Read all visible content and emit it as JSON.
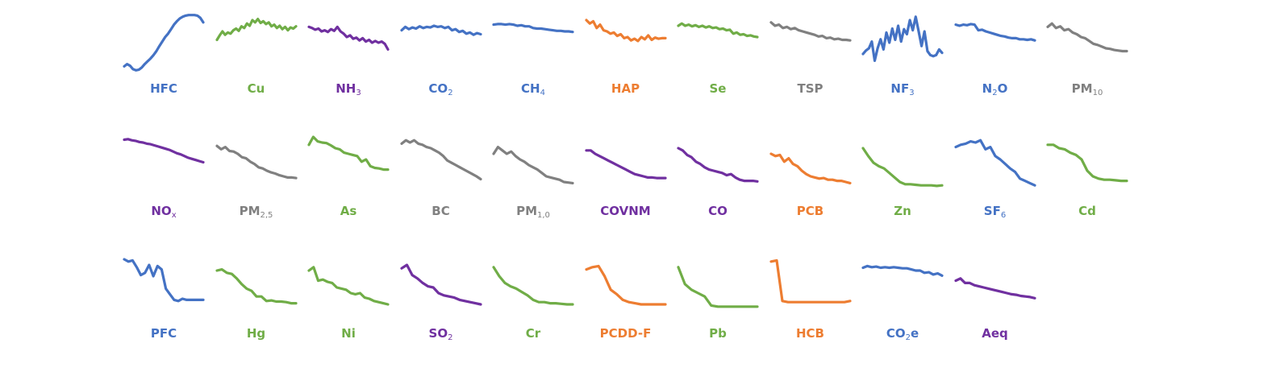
{
  "palette": {
    "blue": "#4472c4",
    "green": "#70ad47",
    "purple": "#7030a0",
    "orange": "#ed7d31",
    "gray": "#808080"
  },
  "chart_data": {
    "type": "line",
    "layout": "small-multiples grid, 3 rows x 11 columns, sparklines without axes",
    "ylim": [
      0,
      100
    ],
    "series": [
      {
        "name": "HFC",
        "label": "HFC",
        "sub": "",
        "color": "blue",
        "row": 0,
        "col": 0,
        "values": [
          8,
          12,
          9,
          3,
          1,
          2,
          6,
          12,
          17,
          22,
          28,
          35,
          44,
          52,
          60,
          66,
          74,
          82,
          88,
          93,
          96,
          98,
          99,
          99,
          99,
          98,
          94,
          86
        ]
      },
      {
        "name": "Cu",
        "label": "Cu",
        "sub": "",
        "color": "green",
        "row": 0,
        "col": 1,
        "values": [
          55,
          63,
          70,
          64,
          68,
          66,
          72,
          75,
          71,
          79,
          76,
          84,
          80,
          90,
          86,
          92,
          85,
          88,
          83,
          86,
          79,
          82,
          76,
          80,
          74,
          78,
          72,
          77,
          75,
          79
        ]
      },
      {
        "name": "NH3",
        "label": "NH",
        "sub": "3",
        "color": "purple",
        "row": 0,
        "col": 2,
        "values": [
          78,
          76,
          73,
          75,
          70,
          72,
          69,
          74,
          71,
          78,
          70,
          66,
          60,
          63,
          57,
          59,
          54,
          58,
          52,
          55,
          50,
          53,
          50,
          52,
          48,
          38
        ]
      },
      {
        "name": "CO2",
        "label": "CO",
        "sub": "2",
        "color": "blue",
        "row": 0,
        "col": 3,
        "values": [
          72,
          78,
          74,
          77,
          75,
          79,
          76,
          78,
          77,
          80,
          78,
          79,
          76,
          78,
          72,
          74,
          69,
          71,
          66,
          68,
          64,
          67,
          65
        ]
      },
      {
        "name": "CH4",
        "label": "CH",
        "sub": "4",
        "color": "blue",
        "row": 0,
        "col": 4,
        "values": [
          82,
          83,
          83,
          82,
          83,
          82,
          80,
          81,
          79,
          79,
          76,
          75,
          75,
          74,
          73,
          72,
          71,
          71,
          70,
          70,
          69
        ]
      },
      {
        "name": "HAP",
        "label": "HAP",
        "sub": "",
        "color": "orange",
        "row": 0,
        "col": 5,
        "values": [
          90,
          84,
          88,
          76,
          82,
          72,
          70,
          66,
          68,
          62,
          65,
          58,
          60,
          54,
          57,
          53,
          60,
          56,
          63,
          55,
          59,
          57,
          58,
          58
        ]
      },
      {
        "name": "Se",
        "label": "Se",
        "sub": "",
        "color": "green",
        "row": 0,
        "col": 6,
        "values": [
          80,
          84,
          80,
          82,
          79,
          81,
          78,
          80,
          77,
          79,
          76,
          77,
          74,
          75,
          72,
          73,
          66,
          68,
          64,
          65,
          62,
          63,
          61,
          60
        ]
      },
      {
        "name": "TSP",
        "label": "TSP",
        "sub": "",
        "color": "gray",
        "row": 0,
        "col": 7,
        "values": [
          86,
          80,
          82,
          76,
          78,
          74,
          76,
          72,
          70,
          68,
          66,
          64,
          61,
          62,
          58,
          59,
          56,
          57,
          55,
          55,
          54
        ]
      },
      {
        "name": "NF3",
        "label": "NF",
        "sub": "3",
        "color": "blue",
        "row": 0,
        "col": 8,
        "values": [
          30,
          36,
          40,
          52,
          18,
          40,
          56,
          38,
          68,
          50,
          75,
          55,
          80,
          52,
          74,
          65,
          90,
          72,
          96,
          70,
          44,
          70,
          35,
          28,
          26,
          28,
          38,
          32
        ]
      },
      {
        "name": "N2O",
        "label": "N",
        "sub": "2",
        "label2": "O",
        "color": "blue",
        "row": 0,
        "col": 9,
        "values": [
          82,
          80,
          82,
          81,
          83,
          82,
          72,
          73,
          70,
          68,
          66,
          64,
          62,
          61,
          59,
          58,
          58,
          56,
          56,
          55,
          56,
          54
        ]
      },
      {
        "name": "PM10",
        "label": "PM",
        "sub": "10",
        "color": "gray",
        "row": 0,
        "col": 10,
        "values": [
          78,
          84,
          76,
          79,
          72,
          74,
          68,
          65,
          60,
          58,
          53,
          48,
          46,
          43,
          40,
          39,
          37,
          36,
          35,
          35
        ]
      },
      {
        "name": "NOX",
        "label": "NO",
        "sub": "x",
        "color": "purple",
        "row": 1,
        "col": 0,
        "values": [
          95,
          96,
          94,
          93,
          91,
          90,
          88,
          87,
          85,
          83,
          81,
          79,
          77,
          74,
          71,
          69,
          66,
          63,
          61,
          59,
          57,
          55
        ]
      },
      {
        "name": "PM2,5",
        "label": "PM",
        "sub": "2,5",
        "color": "gray",
        "row": 1,
        "col": 1,
        "values": [
          84,
          78,
          82,
          75,
          74,
          70,
          64,
          62,
          56,
          52,
          46,
          44,
          40,
          37,
          35,
          32,
          30,
          28,
          28,
          27
        ]
      },
      {
        "name": "As",
        "label": "As",
        "sub": "",
        "color": "green",
        "row": 1,
        "col": 2,
        "values": [
          86,
          100,
          92,
          90,
          89,
          85,
          80,
          78,
          72,
          70,
          68,
          66,
          56,
          60,
          48,
          45,
          44,
          42,
          42
        ]
      },
      {
        "name": "BC",
        "label": "BC",
        "sub": "",
        "color": "gray",
        "row": 1,
        "col": 3,
        "values": [
          88,
          94,
          90,
          94,
          88,
          86,
          82,
          80,
          76,
          72,
          66,
          58,
          54,
          50,
          46,
          42,
          38,
          34,
          30,
          25
        ]
      },
      {
        "name": "PM1,0",
        "label": "PM",
        "sub": "1,0",
        "color": "gray",
        "row": 1,
        "col": 4,
        "values": [
          70,
          82,
          76,
          70,
          74,
          66,
          60,
          56,
          50,
          46,
          42,
          36,
          30,
          28,
          26,
          24,
          20,
          19,
          18
        ]
      },
      {
        "name": "COVNM",
        "label": "COVNM",
        "sub": "",
        "color": "purple",
        "row": 1,
        "col": 5,
        "values": [
          76,
          76,
          70,
          66,
          62,
          58,
          54,
          50,
          46,
          42,
          38,
          34,
          32,
          30,
          28,
          28,
          27,
          27,
          27
        ]
      },
      {
        "name": "CO",
        "label": "CO",
        "sub": "",
        "color": "purple",
        "row": 1,
        "col": 6,
        "values": [
          80,
          76,
          68,
          64,
          56,
          52,
          46,
          42,
          40,
          38,
          36,
          32,
          34,
          28,
          24,
          22,
          22,
          22,
          21
        ]
      },
      {
        "name": "PCB",
        "label": "PCB",
        "sub": "",
        "color": "orange",
        "row": 1,
        "col": 7,
        "values": [
          70,
          66,
          68,
          56,
          62,
          52,
          48,
          40,
          34,
          30,
          28,
          26,
          27,
          24,
          24,
          22,
          22,
          20,
          18
        ]
      },
      {
        "name": "Zn",
        "label": "Zn",
        "sub": "",
        "color": "green",
        "row": 1,
        "col": 8,
        "values": [
          80,
          66,
          54,
          48,
          44,
          36,
          28,
          20,
          16,
          16,
          15,
          14,
          14,
          14,
          13,
          14
        ]
      },
      {
        "name": "SF6",
        "label": "SF",
        "sub": "6",
        "color": "blue",
        "row": 1,
        "col": 9,
        "values": [
          82,
          86,
          88,
          92,
          90,
          94,
          78,
          82,
          66,
          60,
          52,
          44,
          38,
          26,
          22,
          18,
          14
        ]
      },
      {
        "name": "Cd",
        "label": "Cd",
        "sub": "",
        "color": "green",
        "row": 1,
        "col": 10,
        "values": [
          86,
          86,
          80,
          78,
          72,
          68,
          60,
          40,
          30,
          26,
          24,
          24,
          23,
          22,
          22
        ]
      },
      {
        "name": "PFC",
        "label": "PFC",
        "sub": "",
        "color": "blue",
        "row": 2,
        "col": 0,
        "values": [
          100,
          96,
          98,
          86,
          72,
          76,
          90,
          70,
          88,
          82,
          48,
          38,
          28,
          26,
          30,
          28,
          28,
          28,
          28,
          28
        ]
      },
      {
        "name": "Hg",
        "label": "Hg",
        "sub": "",
        "color": "green",
        "row": 2,
        "col": 1,
        "values": [
          80,
          82,
          76,
          74,
          66,
          56,
          48,
          44,
          34,
          34,
          26,
          27,
          25,
          25,
          24,
          22,
          22
        ]
      },
      {
        "name": "Ni",
        "label": "Ni",
        "sub": "",
        "color": "green",
        "row": 2,
        "col": 2,
        "values": [
          80,
          86,
          62,
          64,
          60,
          58,
          50,
          48,
          46,
          40,
          38,
          40,
          32,
          30,
          26,
          24,
          22,
          20
        ]
      },
      {
        "name": "SO2",
        "label": "SO",
        "sub": "2",
        "color": "purple",
        "row": 2,
        "col": 3,
        "values": [
          84,
          90,
          72,
          66,
          58,
          52,
          50,
          40,
          36,
          34,
          32,
          28,
          26,
          24,
          22,
          20
        ]
      },
      {
        "name": "Cr",
        "label": "Cr",
        "sub": "",
        "color": "green",
        "row": 2,
        "col": 4,
        "values": [
          86,
          70,
          58,
          52,
          48,
          42,
          36,
          28,
          24,
          24,
          22,
          22,
          21,
          20,
          20
        ]
      },
      {
        "name": "PCDD-F",
        "label": "PCDD-F",
        "sub": "",
        "color": "orange",
        "row": 2,
        "col": 5,
        "values": [
          82,
          86,
          88,
          70,
          46,
          38,
          28,
          24,
          22,
          20,
          20,
          20,
          20,
          20
        ]
      },
      {
        "name": "Pb",
        "label": "Pb",
        "sub": "",
        "color": "green",
        "row": 2,
        "col": 6,
        "values": [
          86,
          56,
          46,
          40,
          34,
          18,
          16,
          16,
          16,
          16,
          16,
          16,
          16
        ]
      },
      {
        "name": "HCB",
        "label": "HCB",
        "sub": "",
        "color": "orange",
        "row": 2,
        "col": 7,
        "values": [
          96,
          98,
          26,
          24,
          24,
          24,
          24,
          24,
          24,
          24,
          24,
          24,
          24,
          24,
          26
        ]
      },
      {
        "name": "CO2e",
        "label": "CO",
        "sub": "2",
        "label2": "e",
        "color": "blue",
        "row": 2,
        "col": 8,
        "values": [
          85,
          88,
          86,
          87,
          85,
          86,
          85,
          86,
          85,
          84,
          84,
          82,
          80,
          80,
          76,
          77,
          73,
          75,
          71
        ]
      },
      {
        "name": "Aeq",
        "label": "Aeq",
        "sub": "",
        "color": "purple",
        "row": 2,
        "col": 9,
        "values": [
          62,
          66,
          58,
          58,
          54,
          52,
          50,
          48,
          46,
          44,
          42,
          40,
          38,
          37,
          35,
          34,
          33,
          31
        ]
      }
    ]
  }
}
